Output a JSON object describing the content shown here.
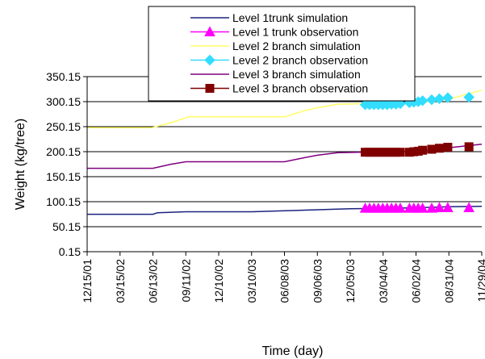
{
  "chart_data": {
    "type": "line",
    "title": "",
    "xlabel": "Time (day)",
    "ylabel": "Weight (kg/tree)",
    "ylim": [
      0.15,
      350.15
    ],
    "yticks": [
      "350.15",
      "300.15",
      "250.15",
      "200.15",
      "150.15",
      "100.15",
      "50.15",
      "0.15"
    ],
    "yticks_values": [
      350.15,
      300.15,
      250.15,
      200.15,
      150.15,
      100.15,
      50.15,
      0.15
    ],
    "xlim": [
      "2001-12-15",
      "2004-11-29"
    ],
    "xticks": [
      "12/15/01",
      "03/15/02",
      "06/13/02",
      "09/11/02",
      "12/10/02",
      "03/10/03",
      "06/08/03",
      "09/06/03",
      "12/05/03",
      "03/04/04",
      "06/02/04",
      "08/31/04",
      "11/29/04"
    ],
    "grid": "horizontal",
    "legend_position": "top",
    "series": [
      {
        "name": "Level 1trunk simulation",
        "kind": "line",
        "color": "#1a237e",
        "points": [
          [
            "2001-12-15",
            75
          ],
          [
            "2002-06-13",
            75
          ],
          [
            "2002-06-25",
            78
          ],
          [
            "2002-09-11",
            80
          ],
          [
            "2003-03-10",
            80
          ],
          [
            "2003-06-08",
            82
          ],
          [
            "2003-09-06",
            84
          ],
          [
            "2003-12-05",
            86
          ],
          [
            "2004-03-04",
            87
          ],
          [
            "2004-06-02",
            88
          ],
          [
            "2004-08-31",
            90
          ],
          [
            "2004-11-29",
            91
          ]
        ]
      },
      {
        "name": "Level 1 trunk observation",
        "kind": "marker",
        "marker": "triangle",
        "color": "#ff00ff",
        "points": [
          [
            "2004-01-15",
            87
          ],
          [
            "2004-01-27",
            87
          ],
          [
            "2004-02-08",
            87
          ],
          [
            "2004-02-20",
            87
          ],
          [
            "2004-03-03",
            87
          ],
          [
            "2004-03-15",
            87
          ],
          [
            "2004-03-27",
            87
          ],
          [
            "2004-04-08",
            87
          ],
          [
            "2004-04-20",
            87
          ],
          [
            "2004-05-15",
            87
          ],
          [
            "2004-05-27",
            87
          ],
          [
            "2004-06-08",
            87
          ],
          [
            "2004-06-20",
            87
          ],
          [
            "2004-07-15",
            87
          ],
          [
            "2004-08-05",
            88
          ],
          [
            "2004-08-28",
            88
          ],
          [
            "2004-10-25",
            88
          ]
        ]
      },
      {
        "name": "Level 2 branch simulation",
        "kind": "line",
        "color": "#ffff66",
        "points": [
          [
            "2001-12-15",
            248
          ],
          [
            "2002-06-10",
            248
          ],
          [
            "2002-08-01",
            258
          ],
          [
            "2002-09-20",
            270
          ],
          [
            "2003-06-08",
            270
          ],
          [
            "2003-08-01",
            282
          ],
          [
            "2003-09-06",
            288
          ],
          [
            "2003-11-01",
            295
          ],
          [
            "2004-01-01",
            296
          ],
          [
            "2004-06-02",
            297
          ],
          [
            "2004-08-31",
            305
          ],
          [
            "2004-11-29",
            323
          ]
        ]
      },
      {
        "name": "Level 2 branch observation",
        "kind": "marker",
        "marker": "diamond",
        "color": "#33ddff",
        "points": [
          [
            "2004-01-15",
            294
          ],
          [
            "2004-01-27",
            294
          ],
          [
            "2004-02-08",
            294
          ],
          [
            "2004-02-20",
            294
          ],
          [
            "2004-03-03",
            294
          ],
          [
            "2004-03-15",
            294
          ],
          [
            "2004-03-27",
            295
          ],
          [
            "2004-04-08",
            295
          ],
          [
            "2004-04-20",
            296
          ],
          [
            "2004-05-15",
            298
          ],
          [
            "2004-05-27",
            299
          ],
          [
            "2004-06-08",
            300
          ],
          [
            "2004-06-20",
            302
          ],
          [
            "2004-07-15",
            304
          ],
          [
            "2004-08-05",
            306
          ],
          [
            "2004-08-28",
            308
          ],
          [
            "2004-10-25",
            309
          ]
        ]
      },
      {
        "name": "Level 3 branch simulation",
        "kind": "line",
        "color": "#800080",
        "points": [
          [
            "2001-12-15",
            167
          ],
          [
            "2002-06-13",
            167
          ],
          [
            "2002-08-01",
            175
          ],
          [
            "2002-09-11",
            180
          ],
          [
            "2003-06-08",
            180
          ],
          [
            "2003-08-01",
            188
          ],
          [
            "2003-09-06",
            193
          ],
          [
            "2003-11-01",
            198
          ],
          [
            "2004-03-04",
            200
          ],
          [
            "2004-06-02",
            201
          ],
          [
            "2004-08-31",
            208
          ],
          [
            "2004-11-29",
            215
          ]
        ]
      },
      {
        "name": "Level 3 branch observation",
        "kind": "marker",
        "marker": "square",
        "color": "#800000",
        "points": [
          [
            "2004-01-15",
            199
          ],
          [
            "2004-01-27",
            199
          ],
          [
            "2004-02-08",
            199
          ],
          [
            "2004-02-20",
            199
          ],
          [
            "2004-03-03",
            199
          ],
          [
            "2004-03-15",
            199
          ],
          [
            "2004-03-27",
            199
          ],
          [
            "2004-04-08",
            199
          ],
          [
            "2004-04-20",
            199
          ],
          [
            "2004-05-15",
            199
          ],
          [
            "2004-05-27",
            200
          ],
          [
            "2004-06-08",
            201
          ],
          [
            "2004-06-20",
            203
          ],
          [
            "2004-07-15",
            205
          ],
          [
            "2004-08-05",
            207
          ],
          [
            "2004-08-28",
            209
          ],
          [
            "2004-10-25",
            210
          ]
        ]
      }
    ]
  }
}
